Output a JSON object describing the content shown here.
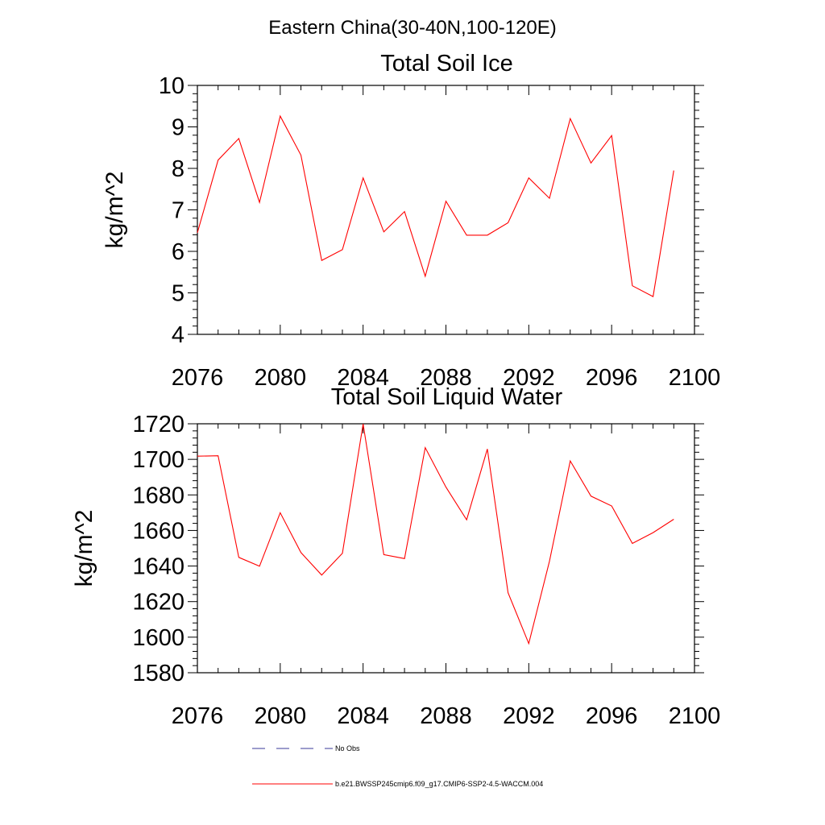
{
  "figure": {
    "region_title": "Eastern China(30-40N,100-120E)"
  },
  "legend": [
    {
      "label": "No Obs",
      "style": "dashed",
      "color": "#3a3a9a"
    },
    {
      "label": "b.e21.BWSSP245cmip6.f09_g17.CMIP6-SSP2-4.5-WACCM.004",
      "style": "solid",
      "color": "#ff0000"
    }
  ],
  "chart_data": [
    {
      "type": "line",
      "title": "Total Soil Ice",
      "xlabel": "",
      "ylabel": "kg/m^2",
      "xlim": [
        2076,
        2100
      ],
      "ylim": [
        4,
        10
      ],
      "xticks": [
        2076,
        2080,
        2084,
        2088,
        2092,
        2096,
        2100
      ],
      "xtick_labels": [
        "2076",
        "2080",
        "2084",
        "2088",
        "2092",
        "2096",
        "2100"
      ],
      "yticks": [
        4,
        5,
        6,
        7,
        8,
        9,
        10
      ],
      "ytick_labels": [
        "4",
        "5",
        "6",
        "7",
        "8",
        "9",
        "10"
      ],
      "x": [
        2076,
        2077,
        2078,
        2079,
        2080,
        2081,
        2082,
        2083,
        2084,
        2085,
        2086,
        2087,
        2088,
        2089,
        2090,
        2091,
        2092,
        2093,
        2094,
        2095,
        2096,
        2097,
        2098,
        2099
      ],
      "series": [
        {
          "color": "#ff0000",
          "values": [
            6.45,
            8.2,
            8.72,
            7.18,
            9.26,
            8.32,
            5.78,
            6.04,
            7.77,
            6.47,
            6.96,
            5.4,
            7.21,
            6.39,
            6.39,
            6.69,
            7.77,
            7.28,
            9.2,
            8.13,
            8.79,
            5.17,
            4.91,
            7.95
          ]
        }
      ],
      "grid": false
    },
    {
      "type": "line",
      "title": "Total Soil Liquid Water",
      "xlabel": "",
      "ylabel": "kg/m^2",
      "xlim": [
        2076,
        2100
      ],
      "ylim": [
        1580,
        1720
      ],
      "xticks": [
        2076,
        2080,
        2084,
        2088,
        2092,
        2096,
        2100
      ],
      "xtick_labels": [
        "2076",
        "2080",
        "2084",
        "2088",
        "2092",
        "2096",
        "2100"
      ],
      "yticks": [
        1580,
        1600,
        1620,
        1640,
        1660,
        1680,
        1700,
        1720
      ],
      "ytick_labels": [
        "1580",
        "1600",
        "1620",
        "1640",
        "1660",
        "1680",
        "1700",
        "1720"
      ],
      "x": [
        2076,
        2077,
        2078,
        2079,
        2080,
        2081,
        2082,
        2083,
        2084,
        2085,
        2086,
        2087,
        2088,
        2089,
        2090,
        2091,
        2092,
        2093,
        2094,
        2095,
        2096,
        2097,
        2098,
        2099
      ],
      "series": [
        {
          "color": "#ff0000",
          "values": [
            1701.8,
            1702.0,
            1644.9,
            1639.9,
            1670.0,
            1647.6,
            1634.9,
            1647.2,
            1719.9,
            1646.4,
            1644.2,
            1706.6,
            1684.4,
            1666.0,
            1705.8,
            1625.0,
            1596.4,
            1642.7,
            1699.1,
            1679.3,
            1673.8,
            1652.7,
            1658.8,
            1666.3
          ]
        }
      ],
      "grid": false
    }
  ]
}
